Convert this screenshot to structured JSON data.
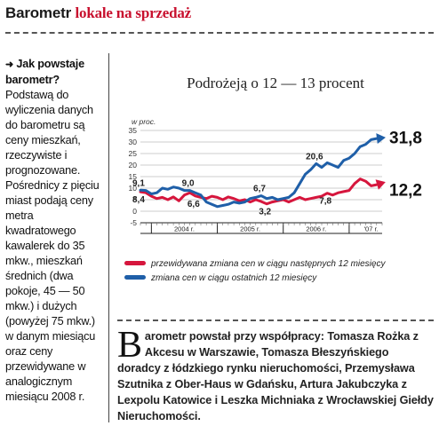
{
  "header": {
    "title_part1": "Barometr",
    "title_part2": "lokale na sprzedaż"
  },
  "sidebar": {
    "lead": "Jak powstaje barometr?",
    "text": "Podstawą do wyliczenia danych do barometru są ceny mieszkań, rzeczywiste i prognozowane. Pośrednicy z pięciu miast podają ceny metra kwadratowego kawalerek do 35 mkw., mieszkań średnich (dwa pokoje, 45 — 50 mkw.) i dużych (powyżej 75 mkw.) w danym miesiącu oraz ceny przewidywane w analogicznym miesiącu 2008 r."
  },
  "footer": {
    "drop_cap": "B",
    "text": "arometr powstał przy współpracy: Tomasza Rożka z Akcesu w Warszawie, Tomasza Błeszyńskiego doradcy z łódzkiego rynku nieruchomości, Przemysława Szutnika z Ober-Haus w Gdańsku, Artura Jakubczyka z Lexpolu Katowice i Leszka Michniaka z Wrocławskiej Giełdy Nieruchomości."
  },
  "colors": {
    "red": "#d6163d",
    "blue": "#1f5fa8",
    "grid": "#bdbdbd"
  },
  "chart_data": {
    "type": "line",
    "title": "Podrożeją o 12 — 13 procent",
    "ylabel": "w proc.",
    "ylim": [
      -5,
      35
    ],
    "yticks": [
      -5,
      0,
      5,
      10,
      15,
      20,
      25,
      30,
      35
    ],
    "year_labels": [
      {
        "label": "2004 r.",
        "x": 8
      },
      {
        "label": "2005 r.",
        "x": 20
      },
      {
        "label": "2006 r.",
        "x": 32
      },
      {
        "label": "'07 r.",
        "x": 42
      }
    ],
    "year_boundaries": [
      2,
      14,
      26,
      38
    ],
    "xlim": [
      0,
      44
    ],
    "series": [
      {
        "name": "przewidywana zmiana cen w ciągu następnych 12 miesięcy",
        "color": "red",
        "x": [
          0,
          1,
          2,
          3,
          4,
          5,
          6,
          7,
          8,
          9,
          10,
          11,
          12,
          13,
          14,
          15,
          16,
          17,
          18,
          19,
          20,
          21,
          22,
          23,
          24,
          25,
          26,
          27,
          28,
          29,
          30,
          31,
          32,
          33,
          34,
          35,
          36,
          37,
          38,
          39,
          40,
          41,
          42,
          43,
          44
        ],
        "y": [
          8.4,
          8,
          6.5,
          5.5,
          6,
          5,
          6.2,
          4.5,
          7,
          8,
          6.6,
          6,
          5.5,
          6.5,
          6,
          5,
          6.2,
          5.5,
          4.5,
          5,
          4,
          5,
          4.2,
          3.2,
          4,
          4.5,
          5,
          4,
          5,
          6,
          5,
          5.5,
          6,
          6.5,
          7.8,
          7,
          8,
          8.5,
          9,
          12,
          14,
          13,
          11,
          11.5,
          12.2
        ]
      },
      {
        "name": "zmiana cen w ciągu ostatnich 12 miesięcy",
        "color": "blue",
        "x": [
          0,
          1,
          2,
          3,
          4,
          5,
          6,
          7,
          8,
          9,
          10,
          11,
          12,
          13,
          14,
          15,
          16,
          17,
          18,
          19,
          20,
          21,
          22,
          23,
          24,
          25,
          26,
          27,
          28,
          29,
          30,
          31,
          32,
          33,
          34,
          35,
          36,
          37,
          38,
          39,
          40,
          41,
          42,
          43,
          44
        ],
        "y": [
          9.1,
          9,
          7.5,
          8,
          10,
          9.5,
          10.5,
          10,
          9,
          9,
          8,
          7,
          4,
          3,
          2,
          2.5,
          3,
          4,
          3.5,
          4,
          5.5,
          6,
          6.7,
          5.5,
          6,
          5,
          5.5,
          6,
          8,
          12,
          16,
          18,
          20.6,
          19,
          21,
          20,
          19,
          22,
          23,
          25,
          28,
          29,
          31,
          31.5,
          31.8
        ]
      }
    ],
    "data_labels": [
      {
        "text": "9,1",
        "x": 0,
        "y": 9.1,
        "series": "blue",
        "big": false
      },
      {
        "text": "8,4",
        "x": 0,
        "y": 8.4,
        "series": "red",
        "big": false
      },
      {
        "text": "9,0",
        "x": 9,
        "y": 9.0,
        "series": "blue",
        "big": false
      },
      {
        "text": "6,6",
        "x": 10,
        "y": 6.6,
        "series": "red",
        "big": false
      },
      {
        "text": "6,7",
        "x": 22,
        "y": 6.7,
        "series": "blue",
        "big": false
      },
      {
        "text": "3,2",
        "x": 23,
        "y": 3.2,
        "series": "red",
        "big": false
      },
      {
        "text": "20,6",
        "x": 32,
        "y": 20.6,
        "series": "blue",
        "big": false
      },
      {
        "text": "7,8",
        "x": 34,
        "y": 7.8,
        "series": "red",
        "big": false
      },
      {
        "text": "31,8",
        "x": 44,
        "y": 31.8,
        "series": "blue",
        "big": true
      },
      {
        "text": "12,2",
        "x": 44,
        "y": 12.2,
        "series": "red",
        "big": true
      }
    ],
    "legend": "bottom"
  }
}
